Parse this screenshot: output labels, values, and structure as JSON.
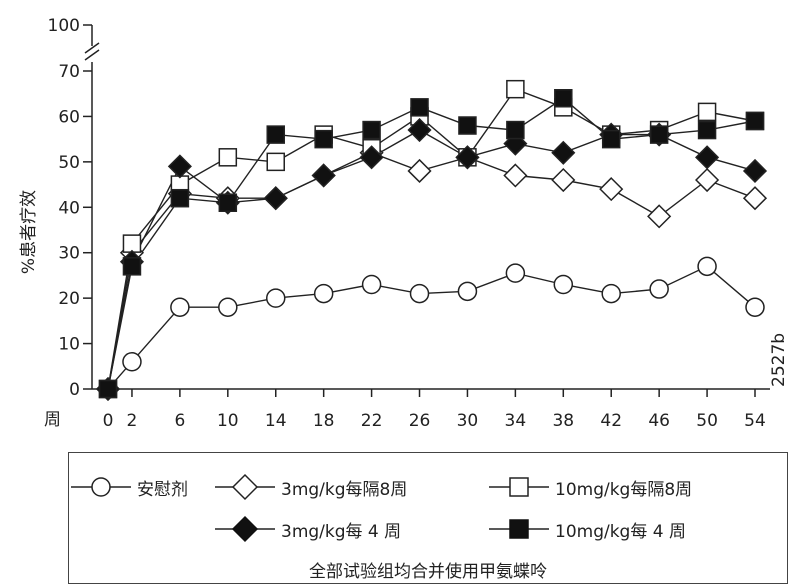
{
  "chart_data": {
    "type": "line",
    "ylabel": "%患者疗效",
    "xlabel": "周",
    "x": [
      0,
      2,
      6,
      10,
      14,
      18,
      22,
      26,
      30,
      34,
      38,
      42,
      46,
      50,
      54
    ],
    "x_ticks": [
      "0",
      "2",
      "6",
      "10",
      "14",
      "18",
      "22",
      "26",
      "30",
      "34",
      "38",
      "42",
      "46",
      "50",
      "54"
    ],
    "y_ticks": [
      "0",
      "10",
      "20",
      "30",
      "40",
      "50",
      "60",
      "70",
      "100"
    ],
    "y_break": "70 → 100",
    "ylim": [
      0,
      100
    ],
    "grid": false,
    "side_code": "2527b",
    "series": [
      {
        "name": "安慰剂",
        "marker": "open-circle",
        "values": [
          0,
          6,
          18,
          18,
          20,
          21,
          23,
          21,
          21.5,
          25.5,
          23,
          21,
          22,
          27,
          18
        ]
      },
      {
        "name": "3mg/kg每隔8周",
        "marker": "open-diamond",
        "values": [
          0,
          30,
          43,
          42,
          42,
          47,
          52,
          48,
          51,
          47,
          46,
          44,
          38,
          46,
          42
        ]
      },
      {
        "name": "10mg/kg每隔8周",
        "marker": "open-square",
        "values": [
          0,
          32,
          45,
          51,
          50,
          56,
          53,
          60,
          51,
          66,
          62,
          56,
          57,
          61,
          59
        ]
      },
      {
        "name": "3mg/kg每 4 周",
        "marker": "filled-diamond",
        "values": [
          0,
          28,
          49,
          41,
          42,
          47,
          51,
          57,
          51,
          54,
          52,
          56,
          56,
          51,
          48
        ]
      },
      {
        "name": "10mg/kg每 4 周",
        "marker": "filled-square",
        "values": [
          0,
          27,
          42,
          41,
          56,
          55,
          57,
          62,
          58,
          57,
          64,
          55,
          56,
          57,
          59
        ]
      }
    ],
    "legend_placement": "bottom",
    "legend_note": "全部试验组均合并使用甲氨蝶呤"
  }
}
